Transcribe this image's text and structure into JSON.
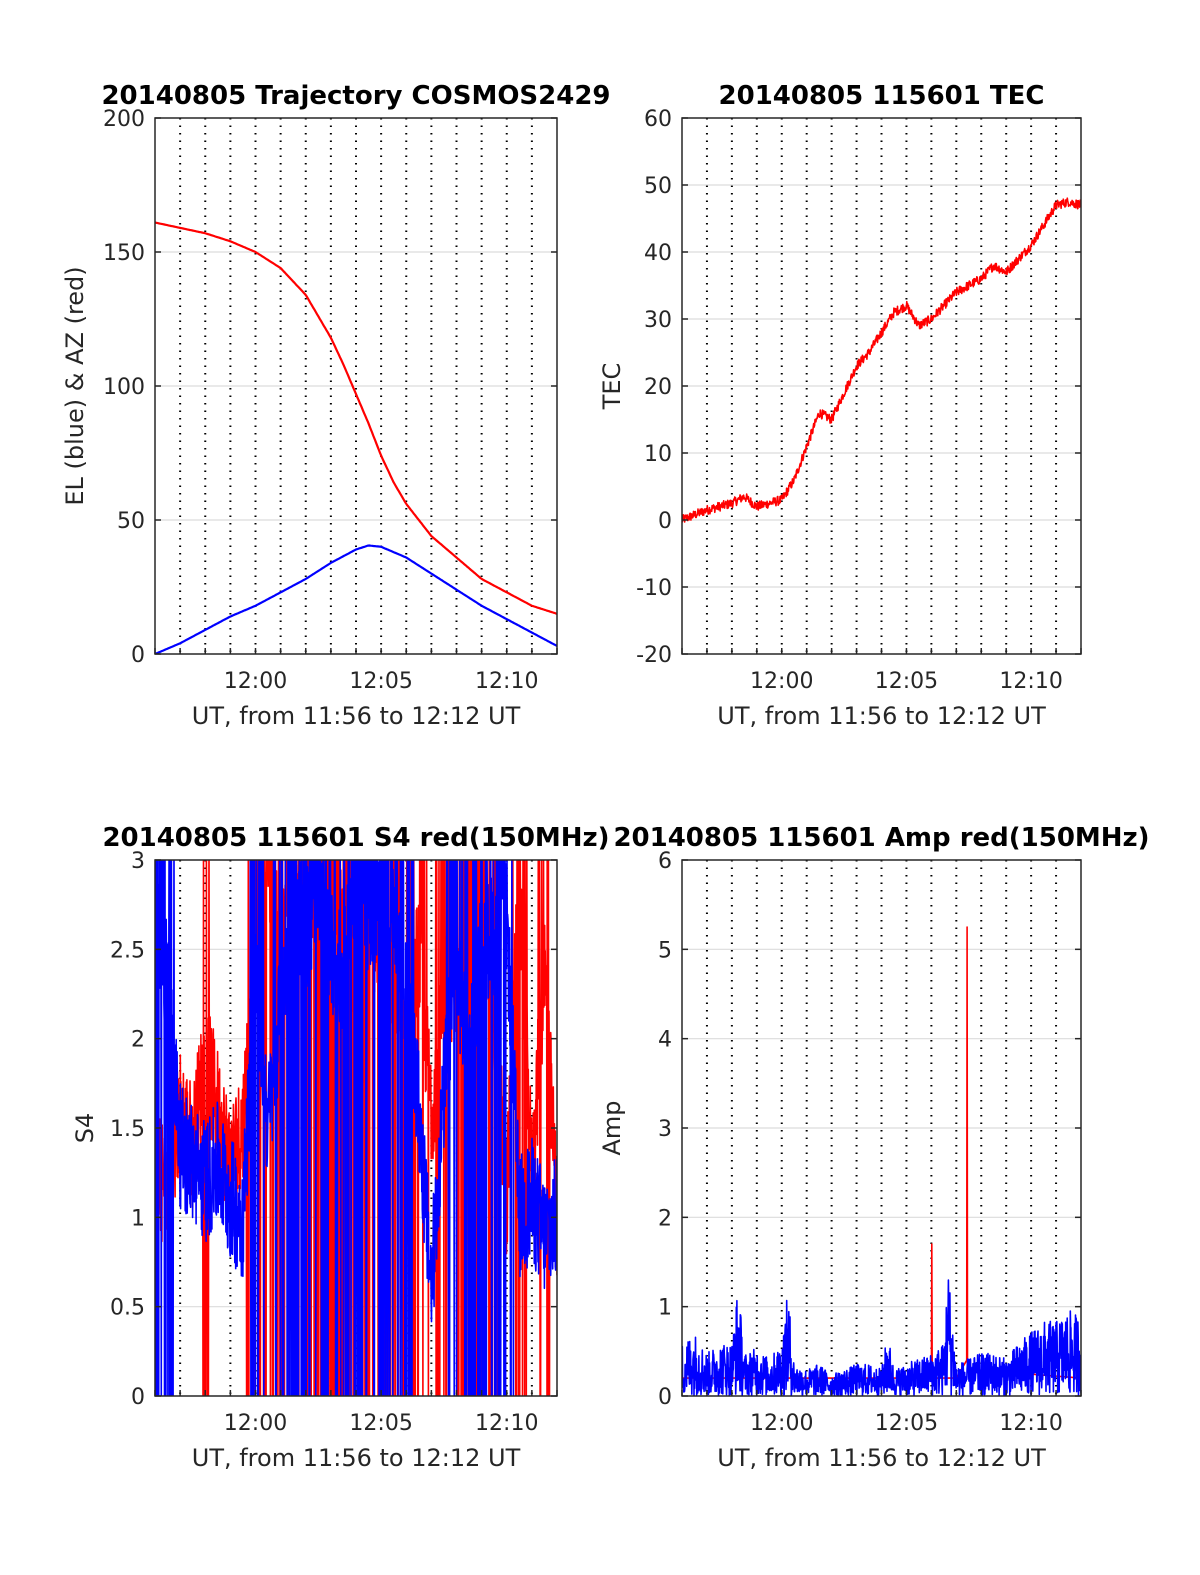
{
  "figure": {
    "subplot_titles": [
      "20140805 Trajectory COSMOS2429",
      "20140805 115601 TEC",
      "20140805 115601 S4 red(150MHz)",
      "20140805 115601 Amp red(150MHz)"
    ]
  },
  "colors": {
    "red": "#ff0000",
    "blue": "#0000ff",
    "grid": "#262626",
    "axes": "#262626"
  },
  "chart_data": [
    {
      "type": "line",
      "title": "20140805 Trajectory COSMOS2429",
      "xlabel": "UT, from 11:56 to 12:12 UT",
      "ylabel": "EL (blue) & AZ (red)",
      "xlim": [
        "11:56",
        "12:12"
      ],
      "ylim": [
        0,
        200
      ],
      "xticks": [
        "12:00",
        "12:05",
        "12:10"
      ],
      "yticks": [
        0,
        50,
        100,
        150,
        200
      ],
      "grid": true,
      "series": [
        {
          "color": "red",
          "x": [
            "11:56",
            "11:57",
            "11:58",
            "11:59",
            "12:00",
            "12:01",
            "12:02",
            "12:03",
            "12:03:30",
            "12:04",
            "12:04:30",
            "12:05",
            "12:05:30",
            "12:06",
            "12:07",
            "12:08",
            "12:09",
            "12:10",
            "12:11",
            "12:12"
          ],
          "values": [
            161,
            159,
            157,
            154,
            150,
            144,
            134,
            118,
            108,
            97,
            86,
            74,
            64,
            56,
            44,
            36,
            28,
            23,
            18,
            15
          ]
        },
        {
          "color": "blue",
          "x": [
            "11:56",
            "11:57",
            "11:58",
            "11:59",
            "12:00",
            "12:01",
            "12:02",
            "12:03",
            "12:04",
            "12:04:30",
            "12:05",
            "12:06",
            "12:07",
            "12:08",
            "12:09",
            "12:10",
            "12:11",
            "12:12"
          ],
          "values": [
            0,
            4,
            9,
            14,
            18,
            23,
            28,
            34,
            39,
            40.5,
            40,
            36,
            30,
            24,
            18,
            13,
            8,
            3
          ]
        }
      ]
    },
    {
      "type": "line",
      "title": "20140805 115601 TEC",
      "xlabel": "UT, from 11:56 to 12:12 UT",
      "ylabel": "TEC",
      "xlim": [
        "11:56",
        "12:12"
      ],
      "ylim": [
        -20,
        60
      ],
      "xticks": [
        "12:00",
        "12:05",
        "12:10"
      ],
      "yticks": [
        -20,
        -10,
        0,
        10,
        20,
        30,
        40,
        50,
        60
      ],
      "grid": true,
      "series": [
        {
          "color": "red",
          "x": [
            "11:56",
            "11:57",
            "11:58",
            "11:58:30",
            "11:59",
            "11:59:30",
            "12:00",
            "12:00:30",
            "12:01",
            "12:01:30",
            "12:02",
            "12:02:30",
            "12:03",
            "12:03:30",
            "12:04",
            "12:04:30",
            "12:05",
            "12:05:30",
            "12:06",
            "12:06:30",
            "12:07",
            "12:07:30",
            "12:08",
            "12:08:30",
            "12:09",
            "12:09:30",
            "12:10",
            "12:10:30",
            "12:11",
            "12:11:30",
            "12:12"
          ],
          "values": [
            0,
            1.5,
            2.5,
            3.5,
            2,
            2.5,
            3,
            6,
            11,
            16,
            15,
            19,
            23,
            25,
            28,
            31,
            32,
            29,
            30,
            32,
            34,
            35,
            36,
            38,
            37,
            39,
            41,
            44,
            47,
            47.5,
            47
          ]
        }
      ]
    },
    {
      "type": "line",
      "title": "20140805 115601 S4 red(150MHz)",
      "xlabel": "UT, from 11:56 to 12:12 UT",
      "ylabel": "S4",
      "xlim": [
        "11:56",
        "12:12"
      ],
      "ylim": [
        0,
        3
      ],
      "xticks": [
        "12:00",
        "12:05",
        "12:10"
      ],
      "yticks": [
        0,
        0.5,
        1,
        1.5,
        2,
        2.5,
        3
      ],
      "grid": true,
      "series": [
        {
          "color": "red",
          "x": [
            "11:56",
            "11:56:30",
            "11:57",
            "11:57:30",
            "11:58",
            "11:58:30",
            "11:59",
            "11:59:30",
            "12:00",
            "12:00:30",
            "12:01",
            "12:01:30",
            "12:02",
            "12:02:30",
            "12:03",
            "12:03:30",
            "12:04",
            "12:04:30",
            "12:05",
            "12:05:30",
            "12:06",
            "12:06:30",
            "12:07",
            "12:07:30",
            "12:08",
            "12:08:30",
            "12:09",
            "12:09:30",
            "12:10",
            "12:10:30",
            "12:11",
            "12:11:30",
            "12:12"
          ],
          "values": [
            1.3,
            1.1,
            1.6,
            1.4,
            1.9,
            1.6,
            1.3,
            1.5,
            2.6,
            3,
            2.4,
            3,
            2.8,
            2.9,
            3,
            2.6,
            2.4,
            3,
            2.2,
            2.4,
            2,
            2.5,
            1.6,
            2.2,
            2.4,
            2,
            2.6,
            2.2,
            1.1,
            2.9,
            1.2,
            2.4,
            1.0
          ]
        },
        {
          "color": "blue",
          "x": [
            "11:56",
            "11:56:30",
            "11:57",
            "11:57:30",
            "11:58",
            "11:58:30",
            "11:59",
            "11:59:30",
            "12:00",
            "12:00:30",
            "12:01",
            "12:01:30",
            "12:02",
            "12:02:30",
            "12:03",
            "12:03:30",
            "12:04",
            "12:04:30",
            "12:05",
            "12:05:30",
            "12:06",
            "12:06:30",
            "12:07",
            "12:07:30",
            "12:08",
            "12:08:30",
            "12:09",
            "12:09:30",
            "12:10",
            "12:10:30",
            "12:11",
            "12:11:30",
            "12:12"
          ],
          "values": [
            2.6,
            2.4,
            1.4,
            1.3,
            1.2,
            1.3,
            1.1,
            1.0,
            2.4,
            1.5,
            2.2,
            2.8,
            2.6,
            2.9,
            2.5,
            2.3,
            3,
            2.7,
            2.8,
            2.8,
            2.2,
            1.6,
            0.6,
            1.7,
            2.4,
            1.9,
            2.5,
            2.6,
            2.7,
            1.0,
            1.1,
            0.9,
            1.0
          ]
        }
      ]
    },
    {
      "type": "line",
      "title": "20140805 115601 Amp red(150MHz)",
      "xlabel": "UT, from 11:56 to 12:12 UT",
      "ylabel": "Amp",
      "xlim": [
        "11:56",
        "12:12"
      ],
      "ylim": [
        0,
        6
      ],
      "xticks": [
        "12:00",
        "12:05",
        "12:10"
      ],
      "yticks": [
        0,
        1,
        2,
        3,
        4,
        5,
        6
      ],
      "grid": true,
      "series": [
        {
          "color": "red",
          "x": [
            "11:56",
            "12:06",
            "12:06:01",
            "12:06:02",
            "12:07",
            "12:07:25",
            "12:07:26",
            "12:07:27",
            "12:12"
          ],
          "values": [
            0.2,
            0.2,
            1.7,
            0.2,
            0.2,
            0.4,
            5.25,
            0.3,
            0.2
          ]
        },
        {
          "color": "blue",
          "x": [
            "11:56",
            "11:56:30",
            "11:57",
            "11:57:30",
            "11:58",
            "11:58:15",
            "11:58:30",
            "11:59",
            "11:59:30",
            "12:00",
            "12:00:15",
            "12:00:30",
            "12:01",
            "12:01:30",
            "12:02",
            "12:02:30",
            "12:03",
            "12:03:30",
            "12:04",
            "12:04:15",
            "12:04:30",
            "12:05",
            "12:05:30",
            "12:06",
            "12:06:30",
            "12:06:40",
            "12:07",
            "12:07:30",
            "12:08",
            "12:08:30",
            "12:09",
            "12:09:30",
            "12:10",
            "12:10:30",
            "12:11",
            "12:11:30",
            "12:12"
          ],
          "values": [
            0.5,
            0.6,
            0.4,
            0.5,
            0.5,
            1.05,
            0.4,
            0.45,
            0.35,
            0.5,
            1.0,
            0.3,
            0.25,
            0.3,
            0.2,
            0.25,
            0.3,
            0.3,
            0.25,
            0.6,
            0.25,
            0.3,
            0.35,
            0.4,
            0.5,
            1.25,
            0.3,
            0.35,
            0.4,
            0.4,
            0.35,
            0.5,
            0.6,
            0.7,
            0.7,
            0.8,
            0.75
          ]
        }
      ]
    }
  ]
}
